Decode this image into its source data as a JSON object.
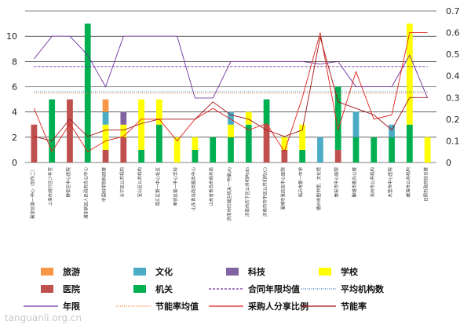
{
  "chart_data": {
    "type": "bar",
    "y_left": {
      "lim": [
        0,
        12
      ],
      "ticks": [
        0,
        2,
        4,
        6,
        8,
        10
      ]
    },
    "y_right": {
      "lim": [
        0,
        0.7
      ],
      "ticks": [
        0,
        0.1,
        0.2,
        0.3,
        0.4,
        0.5,
        0.6,
        0.7
      ]
    },
    "categories": [
      "嘉定区第一中心（创作二）",
      "上海市闵行区少年宫",
      "静安区中心医院",
      "浦东新区人民政府办公中心",
      "中国科学院科研楼",
      "长宁区公共机构",
      "宝山区公共机构",
      "南汇区第一中心社区",
      "奉贤区第一中心学校",
      "山东青岛政务服务中心",
      "山东省青岛市商务局",
      "济南市历城区机关一号楼(A)",
      "济南市历下区公共机构(B)",
      "济南市市中区公共机构(C)",
      "淄博市张店区中心医院",
      "临沂市第一中学",
      "德州市图书馆、文化馆",
      "泰安市中心医院",
      "聊城市委办公楼",
      "滨州市公共机构",
      "东营市中心医院",
      "威海市公共机构",
      "日照市政府综合楼"
    ],
    "bar_series": [
      {
        "name": "医院",
        "color": "#c0504d",
        "values": [
          3,
          0,
          5,
          0,
          1,
          2,
          0,
          0,
          0,
          0,
          0,
          0,
          0,
          3,
          1,
          0,
          0,
          1,
          0,
          0,
          0,
          0,
          0
        ]
      },
      {
        "name": "机关",
        "color": "#00b050",
        "values": [
          0,
          5,
          0,
          11,
          0,
          0,
          1,
          3,
          0,
          1,
          2,
          2,
          3,
          2,
          0,
          1,
          0,
          5,
          2,
          2,
          2,
          3,
          0
        ]
      },
      {
        "name": "学校",
        "color": "#ffff00",
        "values": [
          0,
          0,
          0,
          0,
          2,
          1,
          4,
          2,
          2,
          1,
          0,
          1,
          1,
          0,
          1,
          2,
          0,
          0,
          0,
          0,
          0,
          8,
          2
        ]
      },
      {
        "name": "科技",
        "color": "#8064a2",
        "values": [
          0,
          0,
          0,
          0,
          0,
          1,
          0,
          0,
          0,
          0,
          0,
          0,
          0,
          0,
          0,
          0,
          0,
          0,
          0,
          0,
          0,
          0,
          0
        ]
      },
      {
        "name": "文化",
        "color": "#4bacc6",
        "values": [
          0,
          0,
          0,
          0,
          1,
          0,
          0,
          0,
          0,
          0,
          0,
          1,
          0,
          0,
          0,
          0,
          2,
          0,
          2,
          0,
          1,
          0,
          0
        ]
      },
      {
        "name": "旅游",
        "color": "#f79646",
        "values": [
          0,
          0,
          0,
          0,
          1,
          0,
          0,
          0,
          0,
          0,
          0,
          0,
          0,
          0,
          0,
          0,
          0,
          0,
          0,
          0,
          0,
          0,
          0
        ]
      }
    ],
    "line_series": [
      {
        "name": "年限",
        "color": "#7030a0",
        "dash": "",
        "axis": "left",
        "values": [
          8.2,
          10,
          10,
          8.5,
          6,
          10,
          10,
          10,
          10,
          5.1,
          5.1,
          8,
          8,
          8,
          8,
          8,
          7.8,
          8,
          6,
          6,
          6,
          8.5,
          5.1
        ]
      },
      {
        "name": "合同年限均值",
        "color": "#7030a0",
        "dash": "dashed",
        "axis": "left",
        "values": [
          7.6,
          7.6,
          7.6,
          7.6,
          7.6,
          7.6,
          7.6,
          7.6,
          7.6,
          7.6,
          7.6,
          7.6,
          7.6,
          7.6,
          7.6,
          7.6,
          7.6,
          7.6,
          7.6,
          7.6,
          7.6,
          7.6,
          7.6
        ]
      },
      {
        "name": "平均机构数",
        "color": "#2e75b6",
        "dash": "dotted",
        "axis": "left",
        "values": [
          5.6,
          5.6,
          5.6,
          5.6,
          5.6,
          5.6,
          5.6,
          5.6,
          5.6,
          5.6,
          5.6,
          5.6,
          5.6,
          5.6,
          5.6,
          5.6,
          5.6,
          5.6,
          5.6,
          5.6,
          5.6,
          5.6,
          5.6
        ]
      },
      {
        "name": "节能率均值",
        "color": "#ed7d31",
        "dash": "dotted",
        "axis": "right",
        "values": [
          0.32,
          0.32,
          0.32,
          0.32,
          0.32,
          0.32,
          0.32,
          0.32,
          0.32,
          0.32,
          0.32,
          0.32,
          0.32,
          0.32,
          0.32,
          0.32,
          0.32,
          0.32,
          0.32,
          0.32,
          0.32,
          0.32,
          0.32
        ]
      },
      {
        "name": "采购人分享比例",
        "color": "#e0201b",
        "dash": "",
        "axis": "right",
        "values": [
          0.25,
          0.05,
          0.18,
          0.05,
          0.1,
          0.12,
          0.2,
          0.2,
          0.1,
          0.2,
          0.25,
          0.2,
          0.15,
          0.18,
          0.05,
          0.3,
          0.6,
          0.15,
          0.42,
          0.2,
          0.22,
          0.6,
          0.6
        ]
      },
      {
        "name": "节能率",
        "color": "#9e0f12",
        "dash": "",
        "axis": "right",
        "values": [
          0.12,
          0.1,
          0.2,
          0.12,
          0.15,
          0.15,
          0.18,
          0.2,
          0.2,
          0.2,
          0.28,
          0.22,
          0.2,
          0.15,
          0.12,
          0.15,
          0.58,
          0.28,
          0.25,
          0.22,
          0.15,
          0.3,
          0.3
        ]
      }
    ],
    "legend": {
      "position": "bottom",
      "items": [
        {
          "label": "旅游",
          "color": "#f79646",
          "kind": "box"
        },
        {
          "label": "文化",
          "color": "#4bacc6",
          "kind": "box"
        },
        {
          "label": "科技",
          "color": "#8064a2",
          "kind": "box"
        },
        {
          "label": "学校",
          "color": "#ffff00",
          "kind": "box"
        },
        {
          "label": "医院",
          "color": "#c0504d",
          "kind": "box"
        },
        {
          "label": "机关",
          "color": "#00b050",
          "kind": "box"
        },
        {
          "label": "合同年限均值",
          "color": "#7030a0",
          "kind": "dashed"
        },
        {
          "label": "平均机构数",
          "color": "#2e75b6",
          "kind": "dotted"
        },
        {
          "label": "年限",
          "color": "#7030a0",
          "kind": "line"
        },
        {
          "label": "节能率均值",
          "color": "#ed7d31",
          "kind": "dotted"
        },
        {
          "label": "采购人分享比例",
          "color": "#e0201b",
          "kind": "line"
        },
        {
          "label": "节能率",
          "color": "#9e0f12",
          "kind": "line"
        }
      ]
    },
    "grid": true
  },
  "watermark": "tanguanli.org.cn"
}
